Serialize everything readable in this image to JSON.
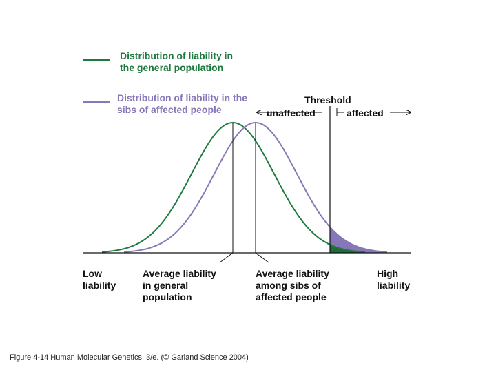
{
  "legend": {
    "general_label": "Distribution of liability in\nthe general population",
    "sibs_label": "Distribution of liability in the\nsibs of affected people",
    "general_color": "#1f7a3f",
    "sibs_color": "#8877b7"
  },
  "threshold": {
    "title": "Threshold",
    "unaffected": "unaffected",
    "affected": "affected"
  },
  "axis": {
    "low": "Low\nliability",
    "avg_general": "Average liability\nin general\npopulation",
    "avg_sibs": "Average liability\namong sibs of\naffected people",
    "high": "High\nliability"
  },
  "caption": "Figure 4-14 Human Molecular Genetics, 3/e. (© Garland Science 2004)"
}
